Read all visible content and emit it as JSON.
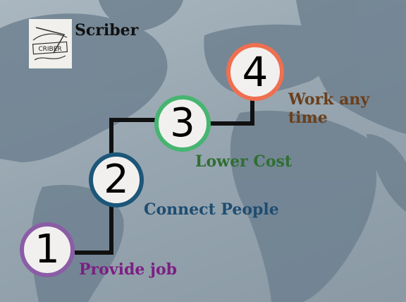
{
  "brand": {
    "name": "Scriber",
    "logo_text": "CRIBER"
  },
  "steps": [
    {
      "number": "1",
      "label": "Provide job"
    },
    {
      "number": "2",
      "label": "Connect People"
    },
    {
      "number": "3",
      "label": "Lower Cost"
    },
    {
      "number": "4",
      "label": "Work any time"
    }
  ],
  "colors": {
    "step1": "#8a5da6",
    "step2": "#1c5679",
    "step3": "#46b571",
    "step4": "#ef6f50",
    "connector": "#111111",
    "background": "#9aa8b2"
  }
}
